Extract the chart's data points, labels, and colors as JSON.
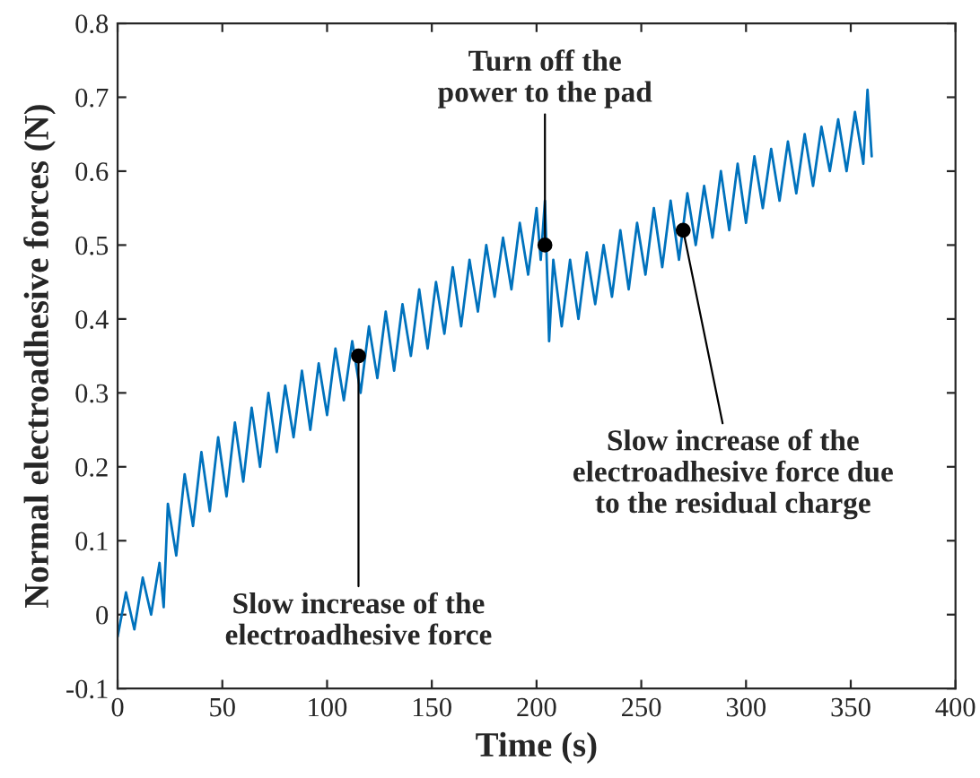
{
  "chart_data": {
    "type": "line",
    "xlabel": "Time (s)",
    "ylabel": "Normal electroadhesive forces (N)",
    "xlim": [
      0,
      400
    ],
    "ylim": [
      -0.1,
      0.8
    ],
    "xticks": [
      0,
      50,
      100,
      150,
      200,
      250,
      300,
      350,
      400
    ],
    "yticks": [
      -0.1,
      0,
      0.1,
      0.2,
      0.3,
      0.4,
      0.5,
      0.6,
      0.7,
      0.8
    ],
    "grid": false,
    "legend": false,
    "marker": "none",
    "line_style": "solid",
    "series": [
      {
        "color": "#0072bd",
        "x": [
          0,
          4,
          8,
          12,
          16,
          20,
          22,
          24,
          28,
          32,
          36,
          40,
          44,
          48,
          52,
          56,
          60,
          64,
          68,
          72,
          76,
          80,
          84,
          88,
          92,
          96,
          100,
          104,
          108,
          112,
          116,
          120,
          124,
          128,
          132,
          136,
          140,
          144,
          148,
          152,
          156,
          160,
          164,
          168,
          172,
          176,
          180,
          184,
          188,
          192,
          196,
          200,
          202,
          204,
          206,
          208,
          212,
          216,
          220,
          224,
          228,
          232,
          236,
          240,
          244,
          248,
          252,
          256,
          260,
          264,
          268,
          272,
          276,
          280,
          284,
          288,
          292,
          296,
          300,
          304,
          308,
          312,
          316,
          320,
          324,
          328,
          332,
          336,
          340,
          344,
          348,
          352,
          356,
          358,
          360
        ],
        "values": [
          -0.03,
          0.03,
          -0.02,
          0.05,
          0.0,
          0.07,
          0.01,
          0.15,
          0.08,
          0.19,
          0.12,
          0.22,
          0.14,
          0.24,
          0.16,
          0.26,
          0.18,
          0.28,
          0.2,
          0.3,
          0.22,
          0.31,
          0.24,
          0.33,
          0.25,
          0.34,
          0.27,
          0.36,
          0.29,
          0.37,
          0.3,
          0.39,
          0.32,
          0.41,
          0.33,
          0.42,
          0.35,
          0.44,
          0.36,
          0.45,
          0.38,
          0.47,
          0.39,
          0.48,
          0.41,
          0.5,
          0.43,
          0.51,
          0.44,
          0.53,
          0.46,
          0.55,
          0.48,
          0.56,
          0.37,
          0.48,
          0.39,
          0.48,
          0.4,
          0.49,
          0.42,
          0.5,
          0.43,
          0.52,
          0.44,
          0.53,
          0.46,
          0.55,
          0.47,
          0.56,
          0.48,
          0.57,
          0.5,
          0.58,
          0.51,
          0.6,
          0.52,
          0.61,
          0.53,
          0.62,
          0.55,
          0.63,
          0.56,
          0.64,
          0.57,
          0.65,
          0.58,
          0.66,
          0.6,
          0.67,
          0.6,
          0.68,
          0.61,
          0.71,
          0.62
        ]
      }
    ],
    "annotations": [
      {
        "text": "Slow increase of the\nelectroadhesive force",
        "x": 115,
        "y": 0.35
      },
      {
        "text": "Turn off the\npower to the pad",
        "x": 204,
        "y": 0.5
      },
      {
        "text": "Slow increase of the\nelectroadhesive force due\nto the residual charge",
        "x": 270,
        "y": 0.52
      }
    ]
  }
}
